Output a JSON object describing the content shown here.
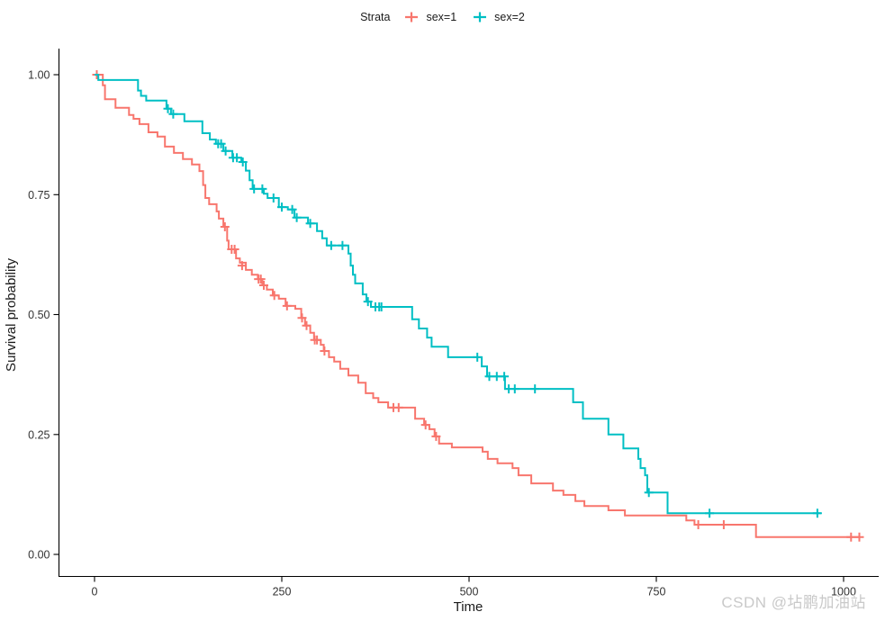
{
  "meta": {
    "background": "#ffffff",
    "text_color": "#1a1a1a",
    "tick_text_color": "#333333",
    "watermark_color": "#c9c9c9"
  },
  "legend": {
    "title": "Strata",
    "items": [
      {
        "label": "sex=1",
        "color": "#F8766D"
      },
      {
        "label": "sex=2",
        "color": "#00BFC4"
      }
    ]
  },
  "watermark": "CSDN @坫鹏加油站",
  "chart_data": {
    "type": "line",
    "subtype": "kaplan-meier-step",
    "title": "",
    "xlabel": "Time",
    "ylabel": "Survival probability",
    "xlim": [
      0,
      1045
    ],
    "ylim": [
      0,
      1
    ],
    "x_ticks": [
      0,
      250,
      500,
      750,
      1000
    ],
    "y_ticks": [
      "0.00",
      "0.25",
      "0.50",
      "0.75",
      "1.00"
    ],
    "grid": false,
    "legend_position": "top",
    "series": [
      {
        "name": "sex=1",
        "color": "#F8766D",
        "steps": [
          [
            0,
            1
          ],
          [
            11,
            0.978
          ],
          [
            14,
            0.949
          ],
          [
            28,
            0.931
          ],
          [
            46,
            0.916
          ],
          [
            52,
            0.908
          ],
          [
            60,
            0.897
          ],
          [
            72,
            0.88
          ],
          [
            84,
            0.871
          ],
          [
            94,
            0.85
          ],
          [
            106,
            0.837
          ],
          [
            118,
            0.824
          ],
          [
            130,
            0.813
          ],
          [
            140,
            0.799
          ],
          [
            145,
            0.77
          ],
          [
            148,
            0.743
          ],
          [
            153,
            0.73
          ],
          [
            163,
            0.715
          ],
          [
            166,
            0.7
          ],
          [
            172,
            0.683
          ],
          [
            177,
            0.654
          ],
          [
            179,
            0.636
          ],
          [
            189,
            0.617
          ],
          [
            194,
            0.608
          ],
          [
            202,
            0.593
          ],
          [
            210,
            0.583
          ],
          [
            218,
            0.574
          ],
          [
            224,
            0.561
          ],
          [
            230,
            0.552
          ],
          [
            238,
            0.54
          ],
          [
            246,
            0.533
          ],
          [
            255,
            0.518
          ],
          [
            268,
            0.512
          ],
          [
            276,
            0.493
          ],
          [
            281,
            0.477
          ],
          [
            288,
            0.462
          ],
          [
            293,
            0.447
          ],
          [
            302,
            0.437
          ],
          [
            306,
            0.424
          ],
          [
            313,
            0.411
          ],
          [
            320,
            0.402
          ],
          [
            328,
            0.387
          ],
          [
            339,
            0.373
          ],
          [
            352,
            0.358
          ],
          [
            362,
            0.336
          ],
          [
            372,
            0.326
          ],
          [
            379,
            0.317
          ],
          [
            392,
            0.306
          ],
          [
            428,
            0.283
          ],
          [
            440,
            0.27
          ],
          [
            447,
            0.261
          ],
          [
            454,
            0.246
          ],
          [
            460,
            0.231
          ],
          [
            477,
            0.223
          ],
          [
            518,
            0.214
          ],
          [
            525,
            0.199
          ],
          [
            538,
            0.19
          ],
          [
            558,
            0.18
          ],
          [
            566,
            0.165
          ],
          [
            583,
            0.148
          ],
          [
            612,
            0.133
          ],
          [
            626,
            0.124
          ],
          [
            642,
            0.111
          ],
          [
            654,
            0.101
          ],
          [
            686,
            0.092
          ],
          [
            708,
            0.081
          ],
          [
            790,
            0.071
          ],
          [
            801,
            0.062
          ],
          [
            883,
            0.036
          ],
          [
            1022,
            0.036
          ]
        ],
        "censors": [
          [
            3,
            1
          ],
          [
            174,
            0.683
          ],
          [
            183,
            0.636
          ],
          [
            187,
            0.636
          ],
          [
            197,
            0.602
          ],
          [
            219,
            0.574
          ],
          [
            222,
            0.574
          ],
          [
            226,
            0.561
          ],
          [
            240,
            0.54
          ],
          [
            257,
            0.518
          ],
          [
            277,
            0.493
          ],
          [
            283,
            0.477
          ],
          [
            294,
            0.447
          ],
          [
            297,
            0.447
          ],
          [
            307,
            0.424
          ],
          [
            399,
            0.306
          ],
          [
            406,
            0.306
          ],
          [
            442,
            0.27
          ],
          [
            456,
            0.246
          ],
          [
            806,
            0.062
          ],
          [
            840,
            0.062
          ],
          [
            1010,
            0.036
          ],
          [
            1021,
            0.036
          ]
        ]
      },
      {
        "name": "sex=2",
        "color": "#00BFC4",
        "steps": [
          [
            0,
            1
          ],
          [
            5,
            0.989
          ],
          [
            58,
            0.967
          ],
          [
            62,
            0.956
          ],
          [
            69,
            0.946
          ],
          [
            96,
            0.929
          ],
          [
            102,
            0.918
          ],
          [
            120,
            0.903
          ],
          [
            144,
            0.878
          ],
          [
            154,
            0.865
          ],
          [
            162,
            0.856
          ],
          [
            172,
            0.841
          ],
          [
            184,
            0.827
          ],
          [
            196,
            0.818
          ],
          [
            202,
            0.8
          ],
          [
            207,
            0.78
          ],
          [
            211,
            0.762
          ],
          [
            226,
            0.752
          ],
          [
            231,
            0.743
          ],
          [
            246,
            0.724
          ],
          [
            258,
            0.719
          ],
          [
            267,
            0.702
          ],
          [
            285,
            0.69
          ],
          [
            297,
            0.674
          ],
          [
            304,
            0.659
          ],
          [
            310,
            0.644
          ],
          [
            339,
            0.627
          ],
          [
            342,
            0.602
          ],
          [
            345,
            0.583
          ],
          [
            348,
            0.565
          ],
          [
            358,
            0.542
          ],
          [
            363,
            0.527
          ],
          [
            369,
            0.516
          ],
          [
            424,
            0.49
          ],
          [
            433,
            0.471
          ],
          [
            444,
            0.452
          ],
          [
            450,
            0.433
          ],
          [
            472,
            0.411
          ],
          [
            517,
            0.392
          ],
          [
            524,
            0.371
          ],
          [
            548,
            0.345
          ],
          [
            639,
            0.317
          ],
          [
            652,
            0.283
          ],
          [
            686,
            0.25
          ],
          [
            706,
            0.221
          ],
          [
            726,
            0.199
          ],
          [
            729,
            0.18
          ],
          [
            735,
            0.165
          ],
          [
            738,
            0.129
          ],
          [
            765,
            0.086
          ],
          [
            970,
            0.086
          ]
        ],
        "censors": [
          [
            98,
            0.929
          ],
          [
            105,
            0.918
          ],
          [
            165,
            0.856
          ],
          [
            169,
            0.856
          ],
          [
            175,
            0.841
          ],
          [
            185,
            0.827
          ],
          [
            190,
            0.827
          ],
          [
            198,
            0.818
          ],
          [
            213,
            0.762
          ],
          [
            224,
            0.762
          ],
          [
            239,
            0.743
          ],
          [
            250,
            0.724
          ],
          [
            264,
            0.719
          ],
          [
            270,
            0.702
          ],
          [
            288,
            0.69
          ],
          [
            316,
            0.644
          ],
          [
            331,
            0.644
          ],
          [
            365,
            0.527
          ],
          [
            375,
            0.516
          ],
          [
            380,
            0.516
          ],
          [
            383,
            0.516
          ],
          [
            511,
            0.411
          ],
          [
            527,
            0.371
          ],
          [
            537,
            0.371
          ],
          [
            547,
            0.371
          ],
          [
            553,
            0.345
          ],
          [
            561,
            0.345
          ],
          [
            588,
            0.345
          ],
          [
            740,
            0.129
          ],
          [
            821,
            0.086
          ],
          [
            965,
            0.086
          ]
        ]
      }
    ]
  }
}
